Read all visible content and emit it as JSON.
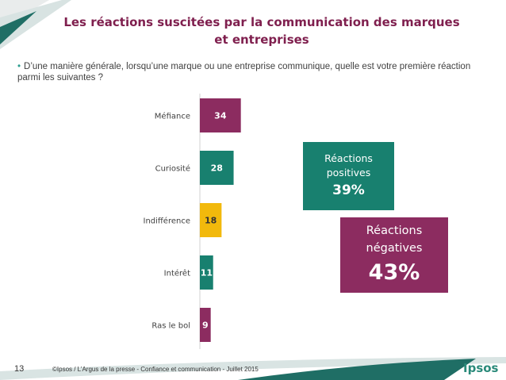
{
  "page": {
    "title": "Les réactions suscitées par la communication des marques et entreprises",
    "question": "D’une manière générale, lorsqu’une marque ou une entreprise communique, quelle est votre première réaction parmi les suivantes ?",
    "page_number": "13",
    "copyright": "©Ipsos / L’Argus de la presse - Confiance et communication - Juillet 2015",
    "brand": "Ipsos"
  },
  "summary": {
    "positive_label": "Réactions positives",
    "positive_value": "39%",
    "negative_label": "Réactions négatives",
    "negative_value": "43%"
  },
  "colors": {
    "negative": "#8c2c60",
    "positive": "#18806f",
    "neutral": "#f2b90c",
    "title": "#7f1f4e"
  },
  "chart_data": {
    "type": "bar",
    "orientation": "horizontal",
    "title": "",
    "xlabel": "",
    "ylabel": "",
    "xlim": [
      0,
      100
    ],
    "categories": [
      "Méfiance",
      "Curiosité",
      "Indifférence",
      "Intérêt",
      "Ras le bol"
    ],
    "values": [
      34,
      28,
      18,
      11,
      9
    ],
    "value_labels": [
      "34",
      "28",
      "18",
      "11",
      "9"
    ],
    "bar_colors": [
      "#8c2c60",
      "#18806f",
      "#f2b90c",
      "#18806f",
      "#8c2c60"
    ],
    "label_colors": [
      "#ffffff",
      "#ffffff",
      "#333333",
      "#ffffff",
      "#ffffff"
    ],
    "grid": false,
    "legend": "none"
  }
}
